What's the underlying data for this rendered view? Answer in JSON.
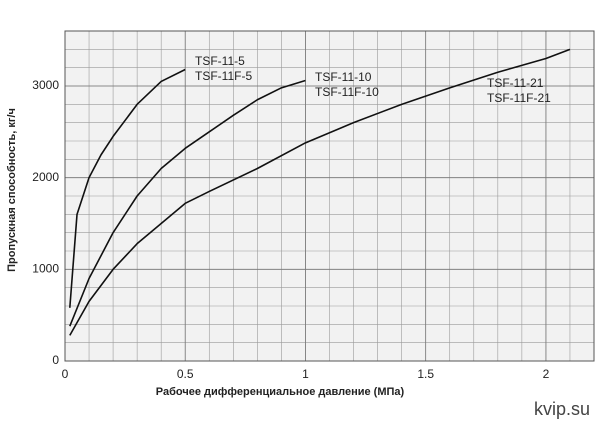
{
  "chart_data": {
    "type": "line",
    "xlabel": "Рабочее дифференциальное давление (МПа)",
    "ylabel": "Пропускная способность, кг/ч",
    "watermark": "kvip.su",
    "xlim": [
      0,
      2.2
    ],
    "ylim": [
      0,
      3600
    ],
    "xticks": [
      0,
      0.5,
      1,
      1.5,
      2
    ],
    "yticks": [
      0,
      1000,
      2000,
      3000
    ],
    "grid": true,
    "grid_subdivisions": 5,
    "series": [
      {
        "name": "TSF-11-5",
        "alt_name": "TSF-11F-5",
        "color": "#111111",
        "x": [
          0.02,
          0.05,
          0.1,
          0.15,
          0.2,
          0.3,
          0.4,
          0.5
        ],
        "values": [
          580,
          1600,
          2000,
          2250,
          2450,
          2800,
          3050,
          3180
        ]
      },
      {
        "name": "TSF-11-10",
        "alt_name": "TSF-11F-10",
        "color": "#111111",
        "x": [
          0.02,
          0.1,
          0.2,
          0.3,
          0.4,
          0.5,
          0.6,
          0.7,
          0.8,
          0.9,
          1.0
        ],
        "values": [
          380,
          900,
          1400,
          1800,
          2100,
          2320,
          2500,
          2680,
          2850,
          2980,
          3060
        ]
      },
      {
        "name": "TSF-11-21",
        "alt_name": "TSF-11F-21",
        "color": "#111111",
        "x": [
          0.02,
          0.1,
          0.2,
          0.3,
          0.4,
          0.5,
          0.6,
          0.8,
          1.0,
          1.2,
          1.4,
          1.6,
          1.8,
          2.0,
          2.1
        ],
        "values": [
          280,
          650,
          1000,
          1280,
          1500,
          1720,
          1850,
          2100,
          2380,
          2600,
          2800,
          2980,
          3150,
          3300,
          3400
        ]
      }
    ]
  }
}
